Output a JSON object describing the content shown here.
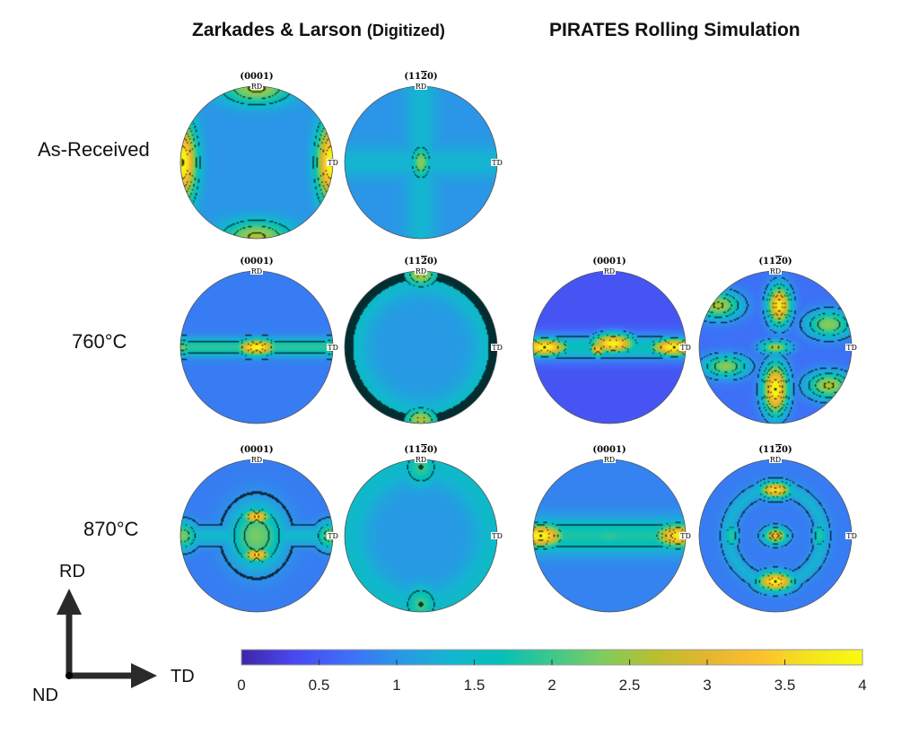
{
  "header": {
    "left_title": "Zarkades & Larson",
    "left_subtitle": "(Digitized)",
    "right_title": "PIRATES Rolling Simulation"
  },
  "row_labels": [
    "As-Received",
    "760°C",
    "870°C"
  ],
  "triad": {
    "up": "RD",
    "right": "TD",
    "origin": "ND"
  },
  "colors": {
    "colormap": [
      "#3e26a8",
      "#4a47ef",
      "#3f6cf9",
      "#2b95e8",
      "#14b5d1",
      "#05c0b8",
      "#3dc88c",
      "#80cc5c",
      "#b9bf2e",
      "#e3b630",
      "#fcc02e",
      "#f3e41d",
      "#f9fb0e"
    ],
    "contour": "#111111"
  },
  "chart_data": {
    "type": "heatmap",
    "title": "Pole figures: Zarkades & Larson (Digitized) vs PIRATES Rolling Simulation",
    "colorbar": {
      "min": 0,
      "max": 4,
      "ticks": [
        "0",
        "0.5",
        "1",
        "1.5",
        "2",
        "2.5",
        "3",
        "3.5",
        "4"
      ],
      "orientation": "horizontal",
      "placement": "bottom"
    },
    "pole_figure_axes": {
      "top": "RD",
      "right": "TD"
    },
    "panels": [
      {
        "row": "As-Received",
        "source": "Zarkades & Larson (Digitized)",
        "plane": "(0001)",
        "features": [
          {
            "kind": "peak",
            "x": -0.97,
            "y": 0.0,
            "sx": 0.12,
            "sy": 0.35,
            "value": 4.0
          },
          {
            "kind": "peak",
            "x": 0.97,
            "y": 0.0,
            "sx": 0.12,
            "sy": 0.35,
            "value": 4.0
          },
          {
            "kind": "peak",
            "x": 0.0,
            "y": 0.97,
            "sx": 0.3,
            "sy": 0.14,
            "value": 2.6
          },
          {
            "kind": "peak",
            "x": 0.0,
            "y": -0.97,
            "sx": 0.3,
            "sy": 0.14,
            "value": 2.6
          }
        ],
        "background": 1.0
      },
      {
        "row": "As-Received",
        "source": "Zarkades & Larson (Digitized)",
        "plane": "(11-20)",
        "features": [
          {
            "kind": "peak",
            "x": 0.0,
            "y": 0.0,
            "sx": 0.08,
            "sy": 0.14,
            "value": 2.4
          },
          {
            "kind": "band-v",
            "x": 0.0,
            "sx": 0.15,
            "value": 1.35
          },
          {
            "kind": "band-h",
            "y": 0.0,
            "sy": 0.15,
            "value": 1.35
          }
        ],
        "background": 1.0
      },
      {
        "row": "760°C",
        "source": "Zarkades & Larson (Digitized)",
        "plane": "(0001)",
        "features": [
          {
            "kind": "peak",
            "x": 0.0,
            "y": 0.0,
            "sx": 0.17,
            "sy": 0.07,
            "value": 4.0
          },
          {
            "kind": "band-h",
            "y": 0.0,
            "sy": 0.08,
            "value": 1.9
          },
          {
            "kind": "peak",
            "x": -0.97,
            "y": 0.0,
            "sx": 0.1,
            "sy": 0.08,
            "value": 2.2
          },
          {
            "kind": "peak",
            "x": 0.97,
            "y": 0.0,
            "sx": 0.1,
            "sy": 0.08,
            "value": 2.2
          }
        ],
        "background": 0.8
      },
      {
        "row": "760°C",
        "source": "Zarkades & Larson (Digitized)",
        "plane": "(11-20)",
        "features": [
          {
            "kind": "peak",
            "x": 0.0,
            "y": 0.95,
            "sx": 0.14,
            "sy": 0.1,
            "value": 2.6
          },
          {
            "kind": "peak",
            "x": 0.0,
            "y": -0.95,
            "sx": 0.14,
            "sy": 0.1,
            "value": 2.6
          },
          {
            "kind": "ring",
            "r": 0.95,
            "width": 0.35,
            "value": 1.5
          }
        ],
        "background": 1.05
      },
      {
        "row": "760°C",
        "source": "PIRATES Rolling Simulation",
        "plane": "(0001)",
        "features": [
          {
            "kind": "peak",
            "x": 0.05,
            "y": 0.05,
            "sx": 0.2,
            "sy": 0.09,
            "value": 3.9
          },
          {
            "kind": "peak",
            "x": -0.15,
            "y": -0.02,
            "sx": 0.08,
            "sy": 0.07,
            "value": 3.4
          },
          {
            "kind": "peak",
            "x": -0.85,
            "y": 0.0,
            "sx": 0.22,
            "sy": 0.08,
            "value": 4.0
          },
          {
            "kind": "peak",
            "x": 0.85,
            "y": 0.0,
            "sx": 0.22,
            "sy": 0.08,
            "value": 4.0
          },
          {
            "kind": "band-h",
            "y": 0.0,
            "sy": 0.12,
            "value": 1.6
          }
        ],
        "background": 0.45
      },
      {
        "row": "760°C",
        "source": "PIRATES Rolling Simulation",
        "plane": "(11-20)",
        "features": [
          {
            "kind": "peak",
            "x": 0.05,
            "y": 0.55,
            "sx": 0.1,
            "sy": 0.17,
            "value": 3.8
          },
          {
            "kind": "peak",
            "x": 0.0,
            "y": -0.55,
            "sx": 0.11,
            "sy": 0.22,
            "value": 4.0
          },
          {
            "kind": "peak",
            "x": 0.0,
            "y": 0.0,
            "sx": 0.13,
            "sy": 0.06,
            "value": 2.6
          },
          {
            "kind": "peak",
            "x": -0.75,
            "y": 0.55,
            "sx": 0.2,
            "sy": 0.12,
            "value": 2.6
          },
          {
            "kind": "peak",
            "x": 0.7,
            "y": 0.3,
            "sx": 0.2,
            "sy": 0.12,
            "value": 2.4
          },
          {
            "kind": "peak",
            "x": -0.65,
            "y": -0.25,
            "sx": 0.2,
            "sy": 0.1,
            "value": 2.4
          },
          {
            "kind": "peak",
            "x": 0.7,
            "y": -0.5,
            "sx": 0.2,
            "sy": 0.12,
            "value": 2.6
          }
        ],
        "background": 0.7
      },
      {
        "row": "870°C",
        "source": "Zarkades & Larson (Digitized)",
        "plane": "(0001)",
        "features": [
          {
            "kind": "peak",
            "x": 0.0,
            "y": 0.25,
            "sx": 0.12,
            "sy": 0.06,
            "value": 3.6
          },
          {
            "kind": "peak",
            "x": 0.0,
            "y": -0.25,
            "sx": 0.12,
            "sy": 0.06,
            "value": 3.6
          },
          {
            "kind": "peak",
            "x": 0.0,
            "y": 0.0,
            "sx": 0.24,
            "sy": 0.28,
            "value": 2.3
          },
          {
            "kind": "band-h",
            "y": 0.0,
            "sy": 0.1,
            "value": 1.4
          },
          {
            "kind": "peak",
            "x": -0.97,
            "y": 0.0,
            "sx": 0.13,
            "sy": 0.12,
            "value": 2.3
          },
          {
            "kind": "peak",
            "x": 0.97,
            "y": 0.0,
            "sx": 0.13,
            "sy": 0.12,
            "value": 2.3
          }
        ],
        "background": 0.8
      },
      {
        "row": "870°C",
        "source": "Zarkades & Larson (Digitized)",
        "plane": "(11-20)",
        "features": [
          {
            "kind": "peak",
            "x": 0.0,
            "y": 0.9,
            "sx": 0.14,
            "sy": 0.15,
            "value": 2.0
          },
          {
            "kind": "peak",
            "x": 0.0,
            "y": -0.9,
            "sx": 0.14,
            "sy": 0.15,
            "value": 2.0
          },
          {
            "kind": "ring",
            "r": 0.95,
            "width": 0.35,
            "value": 1.45
          }
        ],
        "background": 1.05
      },
      {
        "row": "870°C",
        "source": "PIRATES Rolling Simulation",
        "plane": "(0001)",
        "features": [
          {
            "kind": "peak",
            "x": -0.9,
            "y": 0.0,
            "sx": 0.2,
            "sy": 0.1,
            "value": 4.0
          },
          {
            "kind": "peak",
            "x": 0.9,
            "y": 0.0,
            "sx": 0.2,
            "sy": 0.1,
            "value": 3.8
          },
          {
            "kind": "band-h",
            "y": 0.0,
            "sy": 0.16,
            "value": 1.8
          },
          {
            "kind": "peak",
            "x": 0.0,
            "y": 0.0,
            "sx": 0.3,
            "sy": 0.12,
            "value": 1.9
          }
        ],
        "background": 0.85
      },
      {
        "row": "870°C",
        "source": "PIRATES Rolling Simulation",
        "plane": "(11-20)",
        "features": [
          {
            "kind": "peak",
            "x": 0.0,
            "y": 0.6,
            "sx": 0.13,
            "sy": 0.07,
            "value": 3.7
          },
          {
            "kind": "peak",
            "x": 0.0,
            "y": -0.6,
            "sx": 0.15,
            "sy": 0.08,
            "value": 4.0
          },
          {
            "kind": "peak",
            "x": 0.0,
            "y": 0.0,
            "sx": 0.1,
            "sy": 0.07,
            "value": 3.2
          },
          {
            "kind": "peak",
            "x": -0.58,
            "y": 0.0,
            "sx": 0.06,
            "sy": 0.12,
            "value": 1.9
          },
          {
            "kind": "peak",
            "x": 0.58,
            "y": 0.0,
            "sx": 0.06,
            "sy": 0.12,
            "value": 1.9
          },
          {
            "kind": "ring",
            "r": 0.62,
            "width": 0.15,
            "value": 1.3
          }
        ],
        "background": 0.8
      }
    ]
  },
  "panel_titles": {
    "p0": "(0001)",
    "p1": "(1120)",
    "p2": "(0001)",
    "p3": "(1120)",
    "p4": "(0001)",
    "p5": "(1120)",
    "p6": "(0001)",
    "p7": "(1120)",
    "p8": "(0001)",
    "p9": "(1120)"
  },
  "axis_tags": {
    "top": "RD",
    "right": "TD"
  }
}
